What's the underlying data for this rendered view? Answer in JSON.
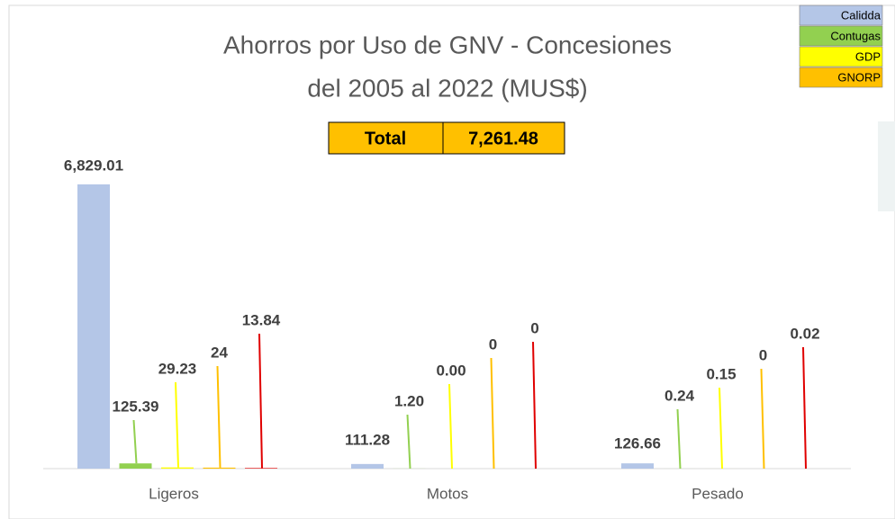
{
  "chart_data": {
    "type": "bar",
    "title": [
      "Ahorros por Uso de GNV - Concesiones",
      "del 2005 al 2022 (MUS$)"
    ],
    "total": {
      "label": "Total",
      "value": "7,261.48"
    },
    "categories": [
      "Ligeros",
      "Motos",
      "Pesado"
    ],
    "series": [
      {
        "name": "Calidda",
        "color": "#b4c6e7",
        "values": [
          6829.01,
          111.28,
          126.66
        ],
        "value_labels": [
          "6,829.01",
          "111.28",
          "126.66"
        ]
      },
      {
        "name": "Contugas",
        "color": "#92d050",
        "values": [
          125.39,
          1.2,
          0.24
        ],
        "value_labels": [
          "125.39",
          "1.20",
          "0.24"
        ]
      },
      {
        "name": "GDP",
        "color": "#ffff00",
        "values": [
          29.23,
          0,
          0.15
        ],
        "value_labels": [
          "29.23",
          "0.00",
          "0.15"
        ]
      },
      {
        "name": "GNORP",
        "color": "#ffc000",
        "values": [
          24,
          0,
          0
        ],
        "value_labels": [
          "24",
          "0",
          "0"
        ]
      },
      {
        "color": "#e00000",
        "values": [
          13.84,
          0,
          0.02
        ],
        "value_labels": [
          "13.84",
          "0",
          "0.02"
        ]
      }
    ]
  }
}
